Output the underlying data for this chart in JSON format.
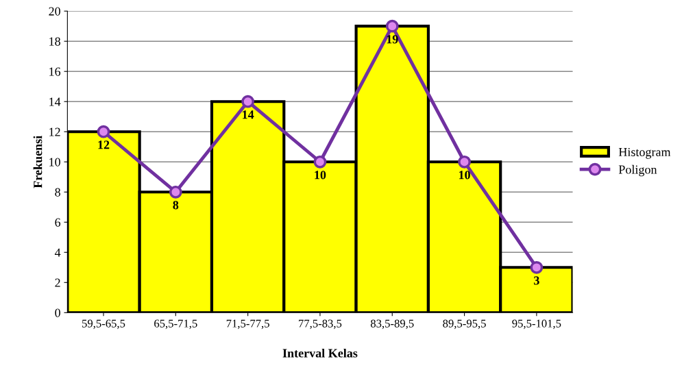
{
  "chart_data": {
    "type": "bar",
    "xlabel": "Interval Kelas",
    "ylabel": "Frekuensi",
    "categories": [
      "59,5-65,5",
      "65,5-71,5",
      "71,5-77,5",
      "77,5-83,5",
      "83,5-89,5",
      "89,5-95,5",
      "95,5-101,5"
    ],
    "series": [
      {
        "name": "Histogram",
        "color": "#ffff00",
        "values": [
          12,
          8,
          14,
          10,
          19,
          10,
          3
        ],
        "value_labels": [
          "12",
          "8",
          "14",
          "10",
          "19",
          "10",
          "3"
        ]
      },
      {
        "name": "Poligon",
        "type": "line",
        "color": "#7030a0",
        "values": [
          12,
          8,
          14,
          10,
          19,
          10,
          3
        ]
      }
    ],
    "ylim": [
      0,
      20
    ],
    "yticks": [
      0,
      2,
      4,
      6,
      8,
      10,
      12,
      14,
      16,
      18,
      20
    ],
    "grid": "y",
    "legend": "right",
    "marker": "circle"
  }
}
